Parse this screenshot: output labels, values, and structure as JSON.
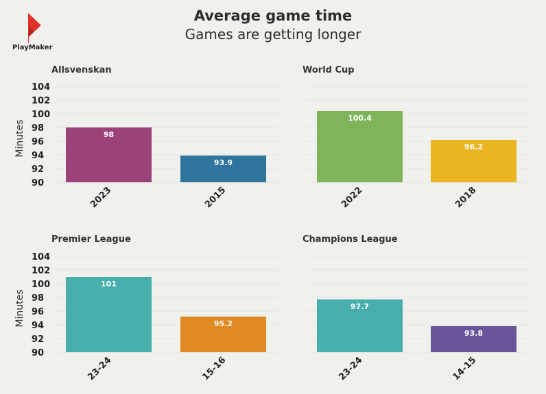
{
  "title": "Average game time",
  "subtitle": "Games are getting longer",
  "logo": {
    "text": "PlayMaker",
    "color": "#e0312b"
  },
  "ylabel": "Minutes",
  "chart_data": [
    {
      "type": "bar",
      "title": "Allsvenskan",
      "categories": [
        "2023",
        "2015"
      ],
      "values": [
        98,
        93.9
      ],
      "labels": [
        "98",
        "93.9"
      ],
      "colors": [
        "#9b4279",
        "#2e749e"
      ],
      "ylabel": "Minutes",
      "ylim": [
        90,
        104
      ],
      "yticks": [
        90,
        92,
        94,
        96,
        98,
        100,
        102,
        104
      ],
      "grid": true
    },
    {
      "type": "bar",
      "title": "World Cup",
      "categories": [
        "2022",
        "2018"
      ],
      "values": [
        100.4,
        96.2
      ],
      "labels": [
        "100.4",
        "96.2"
      ],
      "colors": [
        "#7eb55a",
        "#ebb522"
      ],
      "ylabel": "",
      "ylim": [
        90,
        104
      ],
      "yticks": [],
      "grid": true
    },
    {
      "type": "bar",
      "title": "Premier League",
      "categories": [
        "23-24",
        "15-16"
      ],
      "values": [
        101,
        95.2
      ],
      "labels": [
        "101",
        "95.2"
      ],
      "colors": [
        "#48aeac",
        "#e28a22"
      ],
      "ylabel": "Minutes",
      "ylim": [
        90,
        104
      ],
      "yticks": [
        90,
        92,
        94,
        96,
        98,
        100,
        102,
        104
      ],
      "grid": true
    },
    {
      "type": "bar",
      "title": "Champions League",
      "categories": [
        "23-24",
        "14-15"
      ],
      "values": [
        97.7,
        93.8
      ],
      "labels": [
        "97.7",
        "93.8"
      ],
      "colors": [
        "#48aeac",
        "#6a5599"
      ],
      "ylabel": "",
      "ylim": [
        90,
        104
      ],
      "yticks": [],
      "grid": true
    }
  ]
}
